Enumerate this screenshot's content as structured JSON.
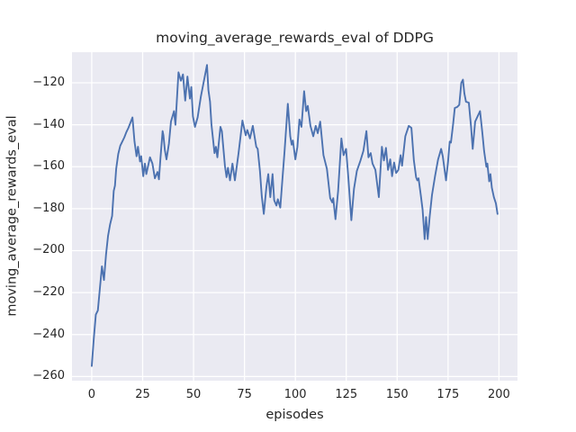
{
  "figure": {
    "title": "moving_average_rewards_eval of DDPG",
    "xlabel": "episodes",
    "ylabel": "moving_average_rewards_eval"
  },
  "chart_data": {
    "type": "line",
    "title": "moving_average_rewards_eval of DDPG",
    "xlabel": "episodes",
    "ylabel": "moving_average_rewards_eval",
    "grid": true,
    "legend": "none",
    "plot_bg_color": "#EAEAF2",
    "grid_color": "#FFFFFF",
    "text_color": "#262626",
    "line_color": "#4C72B0",
    "xlim": [
      -9.7,
      209.1
    ],
    "ylim": [
      -262,
      -105.4
    ],
    "xticks": [
      0,
      25,
      50,
      75,
      100,
      125,
      150,
      175,
      200
    ],
    "xtick_labels": [
      "0",
      "25",
      "50",
      "75",
      "100",
      "125",
      "150",
      "175",
      "200"
    ],
    "yticks": [
      -260,
      -240,
      -220,
      -200,
      -180,
      -160,
      -140,
      -120
    ],
    "ytick_labels": [
      "−260",
      "−240",
      "−220",
      "−200",
      "−180",
      "−160",
      "−140",
      "−120"
    ],
    "series": [
      {
        "name": "moving_average_rewards_eval",
        "color": "#4C72B0",
        "points": [
          [
            0,
            -255
          ],
          [
            1,
            -242
          ],
          [
            2,
            -230.5
          ],
          [
            3,
            -228.5
          ],
          [
            4,
            -218
          ],
          [
            5,
            -207.5
          ],
          [
            6,
            -214
          ],
          [
            7,
            -202
          ],
          [
            8,
            -193
          ],
          [
            9,
            -187.5
          ],
          [
            10,
            -183.5
          ],
          [
            10.8,
            -171.5
          ],
          [
            11.4,
            -169
          ],
          [
            12,
            -161
          ],
          [
            13,
            -154
          ],
          [
            14,
            -150
          ],
          [
            15,
            -148
          ],
          [
            16,
            -146
          ],
          [
            17,
            -143.5
          ],
          [
            18,
            -141.5
          ],
          [
            19,
            -139
          ],
          [
            20,
            -136.5
          ],
          [
            21,
            -148
          ],
          [
            22,
            -155
          ],
          [
            22.7,
            -150.5
          ],
          [
            23.7,
            -157.5
          ],
          [
            24.3,
            -155
          ],
          [
            25.3,
            -164.5
          ],
          [
            26.1,
            -158.5
          ],
          [
            26.8,
            -163.5
          ],
          [
            28.6,
            -155.5
          ],
          [
            29.8,
            -158.5
          ],
          [
            31,
            -165.5
          ],
          [
            32.3,
            -162.5
          ],
          [
            33,
            -166
          ],
          [
            33.7,
            -156.5
          ],
          [
            34.8,
            -143
          ],
          [
            35.2,
            -145
          ],
          [
            35.9,
            -152
          ],
          [
            36.7,
            -156.5
          ],
          [
            37.9,
            -149
          ],
          [
            38.9,
            -138.5
          ],
          [
            40.4,
            -133.5
          ],
          [
            41.1,
            -140
          ],
          [
            42.6,
            -115
          ],
          [
            43.8,
            -119
          ],
          [
            44.8,
            -116
          ],
          [
            45.9,
            -128.5
          ],
          [
            47,
            -117
          ],
          [
            48.2,
            -127.5
          ],
          [
            48.9,
            -122
          ],
          [
            49.7,
            -136
          ],
          [
            50.7,
            -141
          ],
          [
            52,
            -136.5
          ],
          [
            53.6,
            -126.5
          ],
          [
            55.1,
            -119
          ],
          [
            56.6,
            -111.5
          ],
          [
            57.3,
            -123.5
          ],
          [
            58.1,
            -129
          ],
          [
            58.8,
            -140
          ],
          [
            60.3,
            -153.5
          ],
          [
            61,
            -150.5
          ],
          [
            61.7,
            -155.5
          ],
          [
            63.2,
            -141
          ],
          [
            63.9,
            -143
          ],
          [
            65.4,
            -159.5
          ],
          [
            66.2,
            -165
          ],
          [
            66.9,
            -160.5
          ],
          [
            67.9,
            -166.5
          ],
          [
            69.1,
            -158.5
          ],
          [
            70.3,
            -166.5
          ],
          [
            72.1,
            -153.5
          ],
          [
            74,
            -138
          ],
          [
            75.6,
            -145
          ],
          [
            76.4,
            -142.5
          ],
          [
            77.7,
            -146.5
          ],
          [
            79.1,
            -140.5
          ],
          [
            80.8,
            -150.5
          ],
          [
            81.5,
            -151.5
          ],
          [
            82.6,
            -162
          ],
          [
            83.5,
            -174
          ],
          [
            84.5,
            -182.5
          ],
          [
            85.8,
            -169.5
          ],
          [
            86.7,
            -163.5
          ],
          [
            87.7,
            -174.5
          ],
          [
            88.8,
            -163.5
          ],
          [
            89.6,
            -176
          ],
          [
            90.7,
            -178.5
          ],
          [
            91.4,
            -175.5
          ],
          [
            92.6,
            -179.5
          ],
          [
            93.6,
            -166.5
          ],
          [
            94.7,
            -152.5
          ],
          [
            96.3,
            -130
          ],
          [
            97.5,
            -145.5
          ],
          [
            98.2,
            -149.5
          ],
          [
            98.8,
            -147.5
          ],
          [
            100,
            -156.5
          ],
          [
            101,
            -150.5
          ],
          [
            102,
            -137.5
          ],
          [
            103,
            -141
          ],
          [
            104.3,
            -124
          ],
          [
            105.3,
            -133.5
          ],
          [
            106.1,
            -131
          ],
          [
            107.4,
            -140.5
          ],
          [
            108.8,
            -145.5
          ],
          [
            110,
            -140.5
          ],
          [
            111,
            -144
          ],
          [
            112.2,
            -138.5
          ],
          [
            113.8,
            -154.5
          ],
          [
            115.5,
            -161
          ],
          [
            117.1,
            -175
          ],
          [
            118.1,
            -177
          ],
          [
            118.6,
            -175
          ],
          [
            119.7,
            -185
          ],
          [
            121,
            -171.5
          ],
          [
            122.6,
            -146.5
          ],
          [
            123.7,
            -154.5
          ],
          [
            124.9,
            -151.5
          ],
          [
            126,
            -165
          ],
          [
            127.5,
            -185.5
          ],
          [
            128.8,
            -170.5
          ],
          [
            130.2,
            -162
          ],
          [
            132,
            -157
          ],
          [
            133.4,
            -152.5
          ],
          [
            134.9,
            -143
          ],
          [
            135.9,
            -155.5
          ],
          [
            137,
            -153.5
          ],
          [
            137.9,
            -158.5
          ],
          [
            139.3,
            -161.5
          ],
          [
            141,
            -174.5
          ],
          [
            142.5,
            -150.5
          ],
          [
            143.5,
            -157
          ],
          [
            144.5,
            -151
          ],
          [
            145.5,
            -161.5
          ],
          [
            146.6,
            -156.5
          ],
          [
            147.5,
            -164.5
          ],
          [
            148.5,
            -158
          ],
          [
            149.5,
            -163
          ],
          [
            150.6,
            -161.5
          ],
          [
            151.7,
            -154.5
          ],
          [
            152.4,
            -159.5
          ],
          [
            154,
            -145.5
          ],
          [
            155.7,
            -140.5
          ],
          [
            157,
            -141.5
          ],
          [
            158.2,
            -157
          ],
          [
            159.3,
            -165
          ],
          [
            159.9,
            -166.5
          ],
          [
            160.5,
            -165.5
          ],
          [
            161.6,
            -173.5
          ],
          [
            162.5,
            -180.5
          ],
          [
            163.5,
            -194.5
          ],
          [
            164.2,
            -184
          ],
          [
            165,
            -194.5
          ],
          [
            166,
            -183.5
          ],
          [
            167.1,
            -173.5
          ],
          [
            168.6,
            -164.5
          ],
          [
            170.1,
            -156.5
          ],
          [
            171.6,
            -151.5
          ],
          [
            172.4,
            -155
          ],
          [
            174,
            -166.5
          ],
          [
            175,
            -157.5
          ],
          [
            175.8,
            -148
          ],
          [
            176.4,
            -148.5
          ],
          [
            177.5,
            -139.5
          ],
          [
            178.3,
            -132
          ],
          [
            179.5,
            -131.5
          ],
          [
            180.5,
            -130.5
          ],
          [
            181.5,
            -120
          ],
          [
            182.3,
            -118.5
          ],
          [
            183,
            -125
          ],
          [
            183.8,
            -129
          ],
          [
            185.2,
            -129.5
          ],
          [
            186.3,
            -141
          ],
          [
            187.1,
            -151.5
          ],
          [
            188.3,
            -138.5
          ],
          [
            189.5,
            -136
          ],
          [
            190.7,
            -133.5
          ],
          [
            191.8,
            -143.5
          ],
          [
            192.7,
            -152.5
          ],
          [
            193.8,
            -160
          ],
          [
            194.3,
            -158.5
          ],
          [
            195.2,
            -167
          ],
          [
            195.8,
            -163.5
          ],
          [
            196.5,
            -170
          ],
          [
            197.5,
            -174.5
          ],
          [
            198.5,
            -177.5
          ],
          [
            199.3,
            -182.5
          ]
        ]
      }
    ]
  }
}
